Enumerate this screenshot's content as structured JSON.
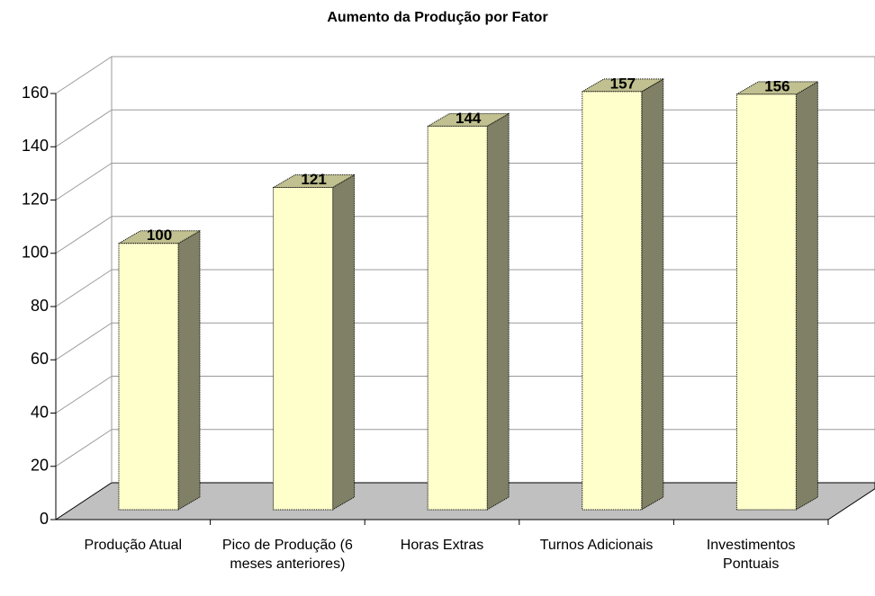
{
  "chart_data": {
    "type": "bar3d",
    "title": "Aumento da Produção por Fator",
    "categories": [
      "Produção Atual",
      "Pico de Produção (6 meses anteriores)",
      "Horas Extras",
      "Turnos Adicionais",
      "Investimentos Pontuais"
    ],
    "values": [
      100,
      121,
      144,
      157,
      156
    ],
    "color": "#ffffcc",
    "ylim": [
      0,
      160
    ],
    "yticks": [
      0,
      20,
      40,
      60,
      80,
      100,
      120,
      140,
      160
    ],
    "grid": true
  }
}
